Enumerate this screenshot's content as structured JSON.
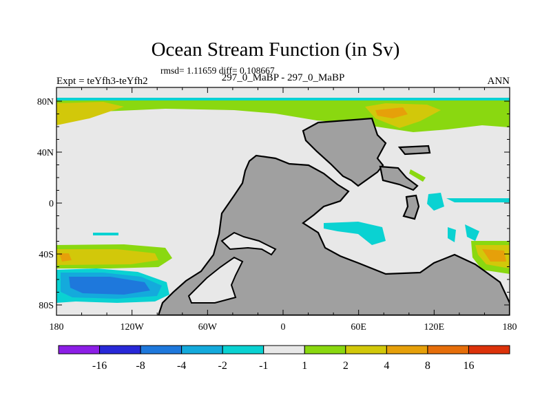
{
  "title": "Ocean Stream Function (in Sv)",
  "stats": "rmsd= 1.11659 diff= 0.108667",
  "left_label": "Expt = teYfh3-teYfh2",
  "center_label": "297_0_MaBP - 297_0_MaBP",
  "right_label": "ANN",
  "lat_ticks": [
    "80N",
    "40N",
    "0",
    "40S",
    "80S"
  ],
  "lon_ticks": [
    "180",
    "120W",
    "60W",
    "0",
    "60E",
    "120E",
    "180"
  ],
  "colorbar": {
    "labels": [
      "-16",
      "-8",
      "-4",
      "-2",
      "-1",
      "1",
      "2",
      "4",
      "8",
      "16"
    ],
    "colors": [
      "#8c1ee6",
      "#2828d8",
      "#1e78dc",
      "#14aadc",
      "#0ad2d2",
      "#e8e8e8",
      "#8ad810",
      "#d2c80a",
      "#e6a00a",
      "#e66e0a",
      "#dc320a"
    ]
  },
  "land_color": "#a0a0a0"
}
